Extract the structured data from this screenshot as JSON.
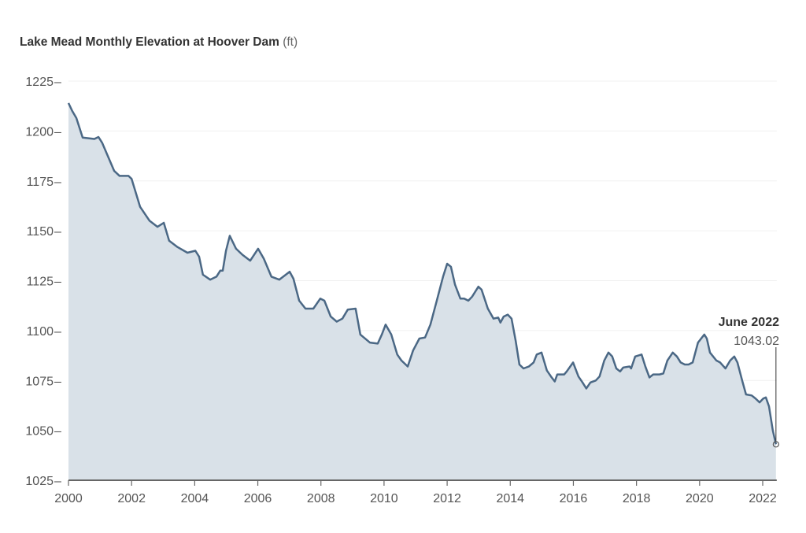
{
  "chart_data": {
    "type": "area",
    "title": "Lake Mead Monthly Elevation at Hoover Dam",
    "unit": "(ft)",
    "xlabel": "",
    "ylabel": "",
    "xlim": [
      2000,
      2022.42
    ],
    "ylim": [
      1025,
      1225
    ],
    "grid": true,
    "x_ticks": [
      "2000",
      "2002",
      "2004",
      "2006",
      "2008",
      "2010",
      "2012",
      "2014",
      "2016",
      "2018",
      "2020",
      "2022"
    ],
    "y_ticks": [
      "1025",
      "1050",
      "1075",
      "1100",
      "1125",
      "1150",
      "1175",
      "1200",
      "1225"
    ],
    "colors": {
      "line": "#4b6885",
      "fill": "#d9e1e8"
    },
    "annotation": {
      "label": "June 2022",
      "value": "1043.02"
    },
    "series": [
      {
        "x": [
          2000.0,
          2000.12,
          2000.25,
          2000.45,
          2000.82,
          2000.95,
          2001.07,
          2001.45,
          2001.62,
          2001.9,
          2002.0,
          2002.27,
          2002.57,
          2002.82,
          2003.02,
          2003.19,
          2003.44,
          2003.77,
          2004.02,
          2004.14,
          2004.26,
          2004.49,
          2004.69,
          2004.81,
          2004.89,
          2004.99,
          2005.11,
          2005.31,
          2005.51,
          2005.76,
          2006.01,
          2006.19,
          2006.43,
          2006.68,
          2007.01,
          2007.13,
          2007.31,
          2007.51,
          2007.76,
          2007.98,
          2008.11,
          2008.31,
          2008.5,
          2008.68,
          2008.85,
          2009.1,
          2009.25,
          2009.55,
          2009.8,
          2009.93,
          2010.05,
          2010.23,
          2010.42,
          2010.55,
          2010.75,
          2010.92,
          2011.12,
          2011.3,
          2011.47,
          2011.67,
          2011.87,
          2012.0,
          2012.12,
          2012.25,
          2012.42,
          2012.54,
          2012.67,
          2012.79,
          2012.99,
          2013.09,
          2013.29,
          2013.47,
          2013.62,
          2013.69,
          2013.79,
          2013.92,
          2014.04,
          2014.17,
          2014.29,
          2014.42,
          2014.59,
          2014.74,
          2014.84,
          2014.99,
          2015.16,
          2015.29,
          2015.41,
          2015.49,
          2015.71,
          2015.79,
          2015.99,
          2016.16,
          2016.29,
          2016.41,
          2016.54,
          2016.71,
          2016.83,
          2016.98,
          2017.11,
          2017.23,
          2017.36,
          2017.48,
          2017.58,
          2017.78,
          2017.83,
          2017.96,
          2018.16,
          2018.28,
          2018.41,
          2018.53,
          2018.73,
          2018.85,
          2018.98,
          2019.15,
          2019.28,
          2019.4,
          2019.53,
          2019.65,
          2019.78,
          2019.95,
          2020.15,
          2020.23,
          2020.33,
          2020.53,
          2020.65,
          2020.82,
          2020.97,
          2021.1,
          2021.2,
          2021.35,
          2021.47,
          2021.65,
          2021.77,
          2021.9,
          2022.02,
          2022.1,
          2022.2,
          2022.32,
          2022.42
        ],
        "y": [
          1214,
          1210,
          1206.5,
          1196.7,
          1196,
          1197,
          1194,
          1180,
          1177.5,
          1177.5,
          1176,
          1162,
          1155,
          1152,
          1154,
          1145,
          1142,
          1139,
          1140,
          1137,
          1128,
          1125.5,
          1127,
          1130,
          1130,
          1140,
          1147.5,
          1141,
          1138,
          1135,
          1141,
          1136,
          1127,
          1125.5,
          1129.5,
          1126,
          1115,
          1111,
          1111,
          1116,
          1115,
          1107,
          1104.5,
          1106,
          1110.5,
          1111,
          1098,
          1094,
          1093.5,
          1098,
          1103,
          1098,
          1088,
          1085,
          1082,
          1090,
          1096,
          1096.5,
          1103,
          1115,
          1127,
          1133.5,
          1132,
          1123,
          1116,
          1116,
          1115,
          1117,
          1122,
          1120.5,
          1111,
          1106,
          1106.5,
          1104,
          1107,
          1108,
          1106,
          1095,
          1083,
          1081,
          1082,
          1084,
          1088,
          1089,
          1080,
          1077,
          1074.5,
          1078,
          1078,
          1079.5,
          1084,
          1077,
          1074,
          1071,
          1074,
          1075,
          1077,
          1085,
          1089,
          1087,
          1081,
          1079.5,
          1081.5,
          1082,
          1081,
          1087,
          1088,
          1082,
          1076.5,
          1078,
          1078,
          1078.5,
          1085,
          1089,
          1087,
          1084,
          1083,
          1083,
          1084,
          1094,
          1098,
          1096,
          1089,
          1085,
          1084,
          1081,
          1085,
          1087,
          1084,
          1075,
          1068,
          1067.5,
          1066,
          1064,
          1066,
          1066.5,
          1062,
          1050,
          1043.02
        ]
      }
    ]
  }
}
